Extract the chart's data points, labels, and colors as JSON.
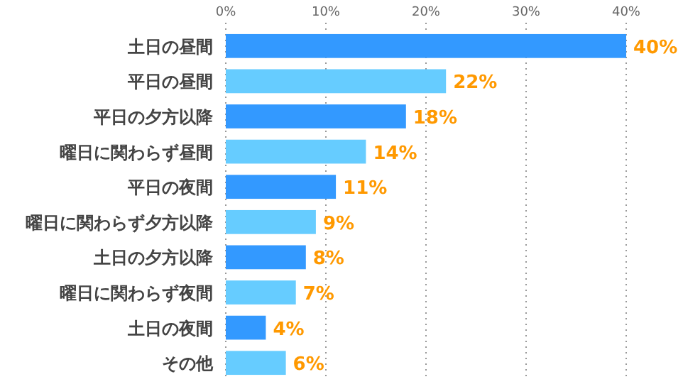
{
  "chart_data": {
    "type": "bar",
    "orientation": "horizontal",
    "categories": [
      "土日の昼間",
      "平日の昼間",
      "平日の夕方以降",
      "曜日に関わらず昼間",
      "平日の夜間",
      "曜日に関わらず夕方以降",
      "土日の夕方以降",
      "曜日に関わらず夜間",
      "土日の夜間",
      "その他"
    ],
    "values": [
      40,
      22,
      18,
      14,
      11,
      9,
      8,
      7,
      4,
      6
    ],
    "colors": [
      "#3399ff",
      "#66ccff",
      "#3399ff",
      "#66ccff",
      "#3399ff",
      "#66ccff",
      "#3399ff",
      "#66ccff",
      "#3399ff",
      "#66ccff"
    ],
    "value_labels": [
      "40%",
      "22%",
      "18%",
      "14%",
      "11%",
      "9%",
      "8%",
      "7%",
      "4%",
      "6%"
    ],
    "xlim": [
      0,
      40
    ],
    "xticks": [
      {
        "value": 0,
        "label": "0%"
      },
      {
        "value": 10,
        "label": "10%"
      },
      {
        "value": 20,
        "label": "20%"
      },
      {
        "value": 30,
        "label": "30%"
      },
      {
        "value": 40,
        "label": "40%"
      }
    ],
    "grid": "x"
  }
}
